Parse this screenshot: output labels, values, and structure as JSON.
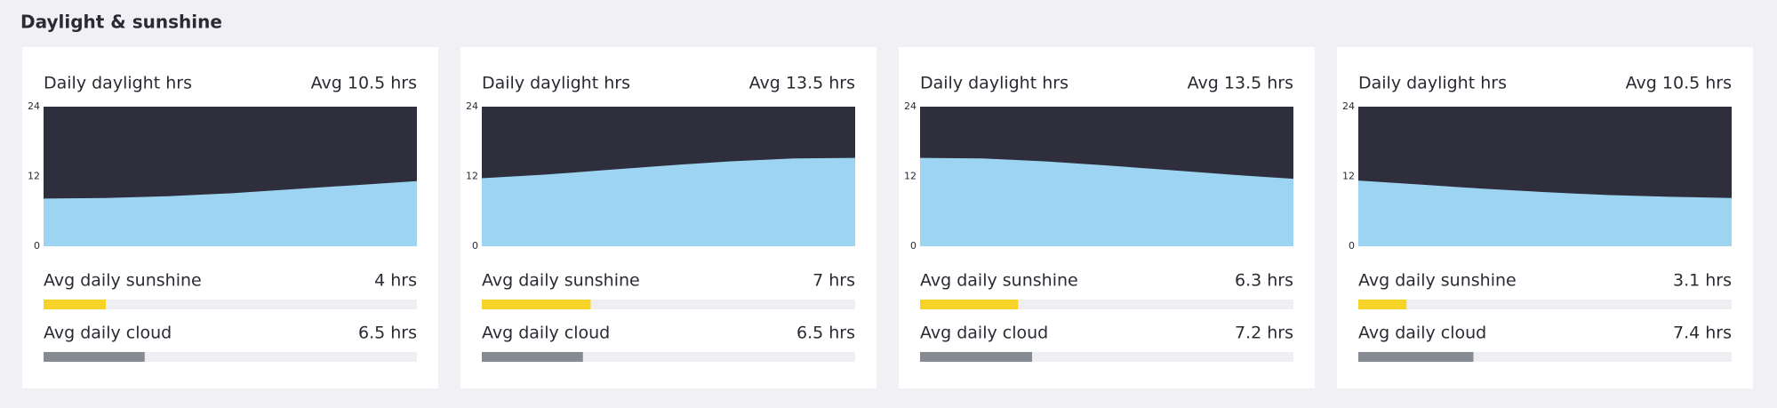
{
  "title": "Daylight & sunshine",
  "chart_data": [
    {
      "type": "area",
      "title": "Daily daylight hrs",
      "subtitle": "Avg 10.5 hrs",
      "x": [
        0,
        1,
        2,
        3,
        4,
        5,
        6
      ],
      "xlim": [
        0,
        6
      ],
      "values": [
        8.2,
        8.3,
        8.6,
        9.1,
        9.8,
        10.5,
        11.2
      ],
      "ylim": [
        0,
        24
      ],
      "yticks": [
        0,
        12,
        24
      ],
      "color": "#9dd4f1",
      "background": "#2f2e3d",
      "meters": [
        {
          "name": "Avg daily sunshine",
          "value": 4,
          "value_label": "4 hrs",
          "color": "#f5d327"
        },
        {
          "name": "Avg daily cloud",
          "value": 6.5,
          "value_label": "6.5 hrs",
          "color": "#868a93"
        }
      ],
      "meter_lim": [
        0,
        24
      ]
    },
    {
      "type": "area",
      "title": "Daily daylight hrs",
      "subtitle": "Avg 13.5 hrs",
      "x": [
        0,
        1,
        2,
        3,
        4,
        5,
        6
      ],
      "xlim": [
        0,
        6
      ],
      "values": [
        11.7,
        12.3,
        13.1,
        13.9,
        14.6,
        15.1,
        15.2
      ],
      "ylim": [
        0,
        24
      ],
      "yticks": [
        0,
        12,
        24
      ],
      "color": "#9dd4f1",
      "background": "#2f2e3d",
      "meters": [
        {
          "name": "Avg daily sunshine",
          "value": 7,
          "value_label": "7 hrs",
          "color": "#f5d327"
        },
        {
          "name": "Avg daily cloud",
          "value": 6.5,
          "value_label": "6.5 hrs",
          "color": "#868a93"
        }
      ],
      "meter_lim": [
        0,
        24
      ]
    },
    {
      "type": "area",
      "title": "Daily daylight hrs",
      "subtitle": "Avg 13.5 hrs",
      "x": [
        0,
        1,
        2,
        3,
        4,
        5,
        6
      ],
      "xlim": [
        0,
        6
      ],
      "values": [
        15.2,
        15.1,
        14.6,
        13.9,
        13.1,
        12.3,
        11.6
      ],
      "ylim": [
        0,
        24
      ],
      "yticks": [
        0,
        12,
        24
      ],
      "color": "#9dd4f1",
      "background": "#2f2e3d",
      "meters": [
        {
          "name": "Avg daily sunshine",
          "value": 6.3,
          "value_label": "6.3 hrs",
          "color": "#f5d327"
        },
        {
          "name": "Avg daily cloud",
          "value": 7.2,
          "value_label": "7.2 hrs",
          "color": "#868a93"
        }
      ],
      "meter_lim": [
        0,
        24
      ]
    },
    {
      "type": "area",
      "title": "Daily daylight hrs",
      "subtitle": "Avg 10.5 hrs",
      "x": [
        0,
        1,
        2,
        3,
        4,
        5,
        6
      ],
      "xlim": [
        0,
        6
      ],
      "values": [
        11.3,
        10.6,
        9.9,
        9.3,
        8.8,
        8.5,
        8.3
      ],
      "ylim": [
        0,
        24
      ],
      "yticks": [
        0,
        12,
        24
      ],
      "color": "#9dd4f1",
      "background": "#2f2e3d",
      "meters": [
        {
          "name": "Avg daily sunshine",
          "value": 3.1,
          "value_label": "3.1 hrs",
          "color": "#f5d327"
        },
        {
          "name": "Avg daily cloud",
          "value": 7.4,
          "value_label": "7.4 hrs",
          "color": "#868a93"
        }
      ],
      "meter_lim": [
        0,
        24
      ]
    }
  ]
}
